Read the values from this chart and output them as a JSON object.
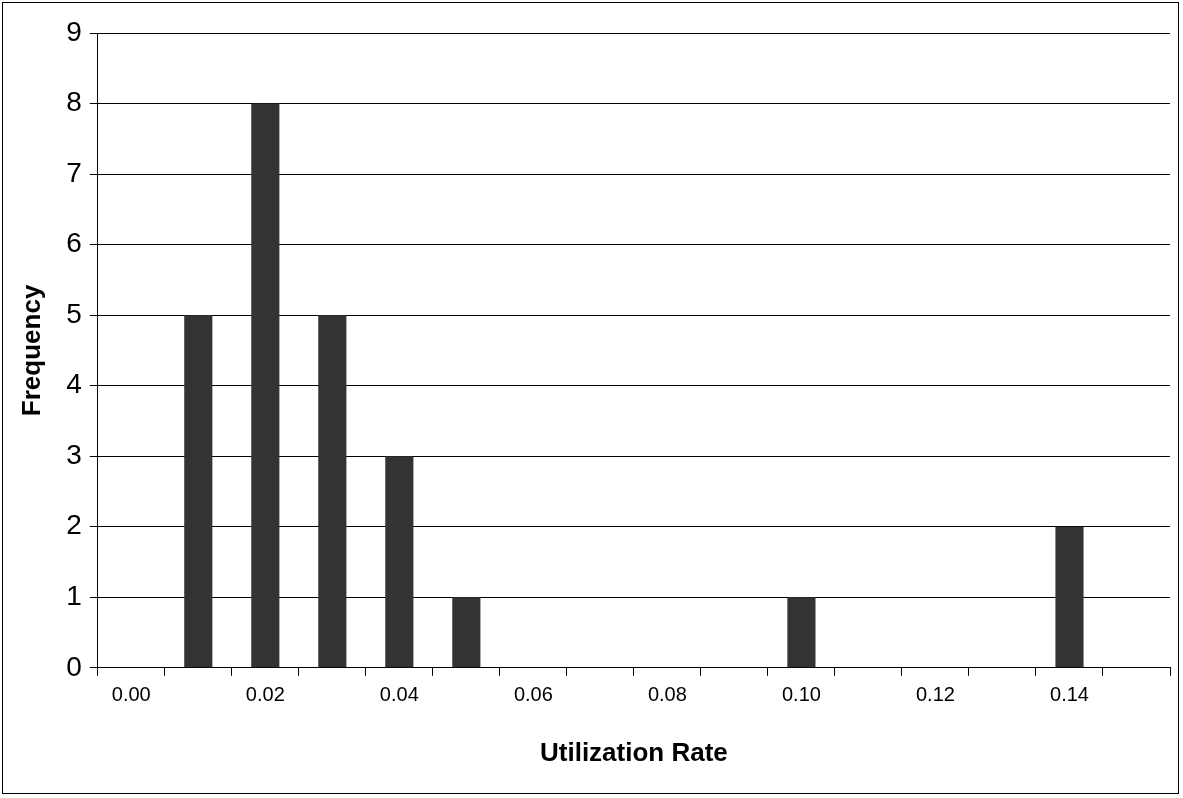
{
  "chart_data": {
    "type": "bar",
    "xlabel": "Utilization Rate",
    "ylabel": "Frequency",
    "categories": [
      "0.00",
      null,
      "0.02",
      null,
      "0.04",
      null,
      "0.06",
      null,
      "0.08",
      null,
      "0.10",
      null,
      "0.12",
      null,
      "0.14",
      null
    ],
    "values": [
      0,
      5,
      8,
      5,
      3,
      1,
      0,
      0,
      0,
      0,
      1,
      0,
      0,
      0,
      2,
      0
    ],
    "color": "#333333",
    "ylim": [
      0,
      9
    ],
    "yticks": [
      0,
      1,
      2,
      3,
      4,
      5,
      6,
      7,
      8,
      9
    ],
    "grid": "y",
    "legend": false
  }
}
